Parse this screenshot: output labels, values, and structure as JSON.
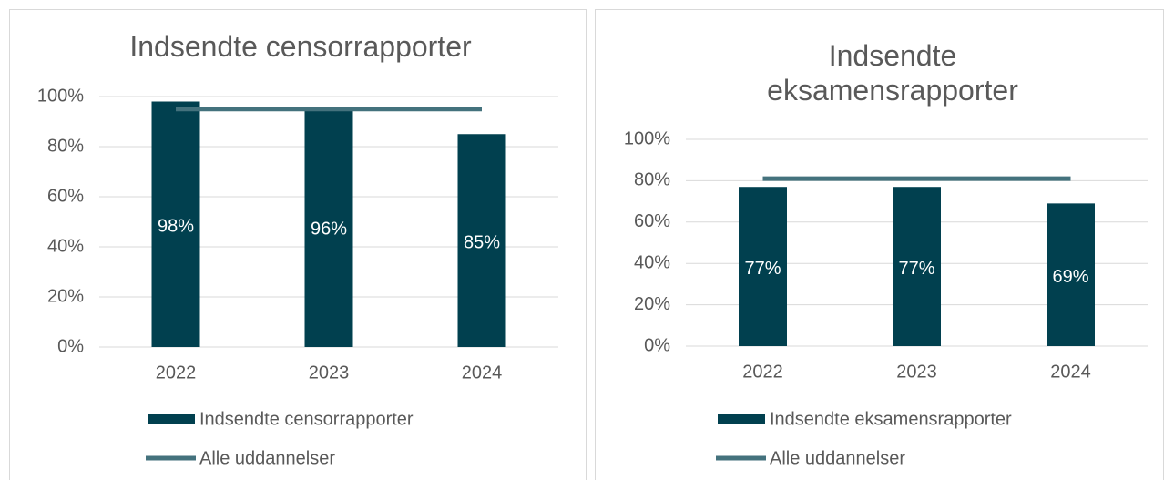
{
  "chart_data": [
    {
      "type": "bar",
      "title": "Indsendte censorrapporter",
      "categories": [
        "2022",
        "2023",
        "2024"
      ],
      "series": [
        {
          "name": "Indsendte censorrapporter",
          "type": "bar",
          "color": "#01404f",
          "values": [
            98,
            96,
            85
          ],
          "value_labels": [
            "98%",
            "96%",
            "85%"
          ]
        },
        {
          "name": "Alle uddannelser",
          "type": "line",
          "color": "#44727d",
          "values": [
            95,
            95,
            95
          ]
        }
      ],
      "ylim": [
        0,
        100
      ],
      "yticks": [
        {
          "value": 0,
          "label": "0%"
        },
        {
          "value": 20,
          "label": "20%"
        },
        {
          "value": 40,
          "label": "40%"
        },
        {
          "value": 60,
          "label": "60%"
        },
        {
          "value": 80,
          "label": "80%"
        },
        {
          "value": 100,
          "label": "100%"
        }
      ],
      "grid": true,
      "legend": "bottom"
    },
    {
      "type": "bar",
      "title": "Indsendte eksamensrapporter",
      "categories": [
        "2022",
        "2023",
        "2024"
      ],
      "series": [
        {
          "name": "Indsendte eksamensrapporter",
          "type": "bar",
          "color": "#01404f",
          "values": [
            77,
            77,
            69
          ],
          "value_labels": [
            "77%",
            "77%",
            "69%"
          ]
        },
        {
          "name": "Alle uddannelser",
          "type": "line",
          "color": "#44727d",
          "values": [
            81,
            81,
            81
          ]
        }
      ],
      "ylim": [
        0,
        100
      ],
      "yticks": [
        {
          "value": 0,
          "label": "0%"
        },
        {
          "value": 20,
          "label": "20%"
        },
        {
          "value": 40,
          "label": "40%"
        },
        {
          "value": 60,
          "label": "60%"
        },
        {
          "value": 80,
          "label": "80%"
        },
        {
          "value": 100,
          "label": "100%"
        }
      ],
      "grid": true,
      "legend": "bottom"
    }
  ]
}
